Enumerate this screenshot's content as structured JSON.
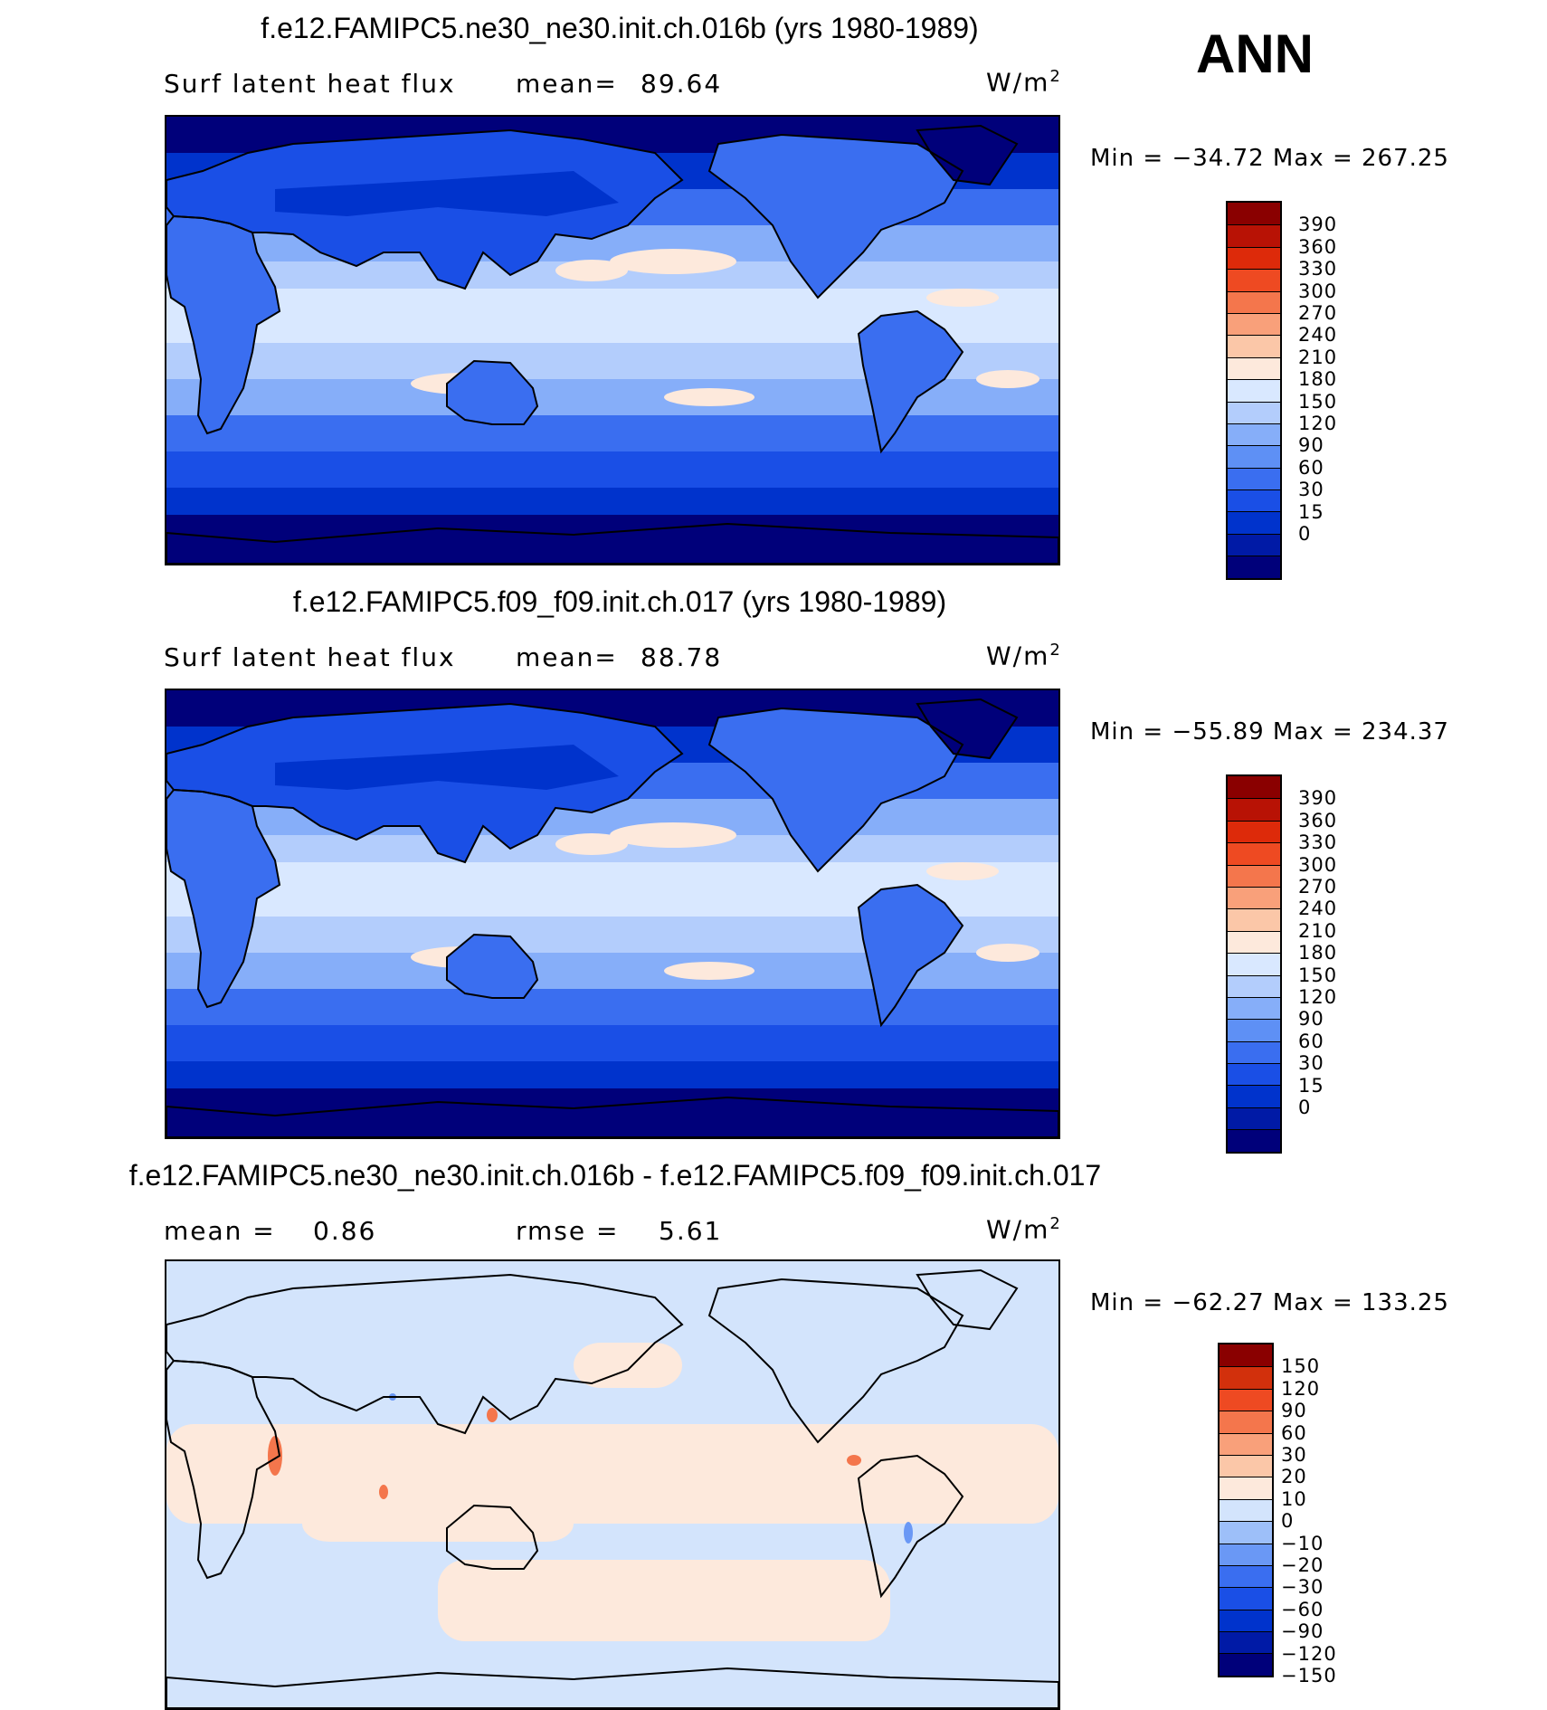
{
  "season": "ANN",
  "colors": {
    "full": [
      "#00007a",
      "#001aa6",
      "#0033cc",
      "#1a4fe6",
      "#3a6ef0",
      "#5e90f5",
      "#86aef9",
      "#b3cdfc",
      "#d9e8ff",
      "#fde9dc",
      "#fbc7a8",
      "#f9a07a",
      "#f4764c",
      "#ee4a22",
      "#dd2a0a",
      "#b81205",
      "#8a0000"
    ],
    "diff": [
      "#00007a",
      "#001aa6",
      "#0033cc",
      "#1a4fe6",
      "#3a6ef0",
      "#6a98f5",
      "#9dbff9",
      "#d3e4fc",
      "#fde9dc",
      "#fbc7a8",
      "#f9a07a",
      "#f4764c",
      "#ee4a22",
      "#d2300c",
      "#8a0000"
    ],
    "coast": "#000000"
  },
  "panels": [
    {
      "title": "f.e12.FAMIPC5.ne30_ne30.init.ch.016b (yrs 1980-1989)",
      "varname": "Surf latent heat flux",
      "stat_label": "mean=",
      "stat_value": "89.64",
      "stat2_label": "",
      "stat2_value": "",
      "units": "W/m",
      "units_exp": "2",
      "minmax": "Min = −34.72 Max = 267.25",
      "colorbar_labels": [
        "390",
        "360",
        "330",
        "300",
        "270",
        "240",
        "210",
        "180",
        "150",
        "120",
        "90",
        "60",
        "30",
        "15",
        "0"
      ]
    },
    {
      "title": "f.e12.FAMIPC5.f09_f09.init.ch.017 (yrs 1980-1989)",
      "varname": "Surf latent heat flux",
      "stat_label": "mean=",
      "stat_value": "88.78",
      "stat2_label": "",
      "stat2_value": "",
      "units": "W/m",
      "units_exp": "2",
      "minmax": "Min = −55.89 Max = 234.37",
      "colorbar_labels": [
        "390",
        "360",
        "330",
        "300",
        "270",
        "240",
        "210",
        "180",
        "150",
        "120",
        "90",
        "60",
        "30",
        "15",
        "0"
      ]
    },
    {
      "title": "f.e12.FAMIPC5.ne30_ne30.init.ch.016b - f.e12.FAMIPC5.f09_f09.init.ch.017",
      "varname": "",
      "stat_label": "mean =",
      "stat_value": "0.86",
      "stat2_label": "rmse =",
      "stat2_value": "5.61",
      "units": "W/m",
      "units_exp": "2",
      "minmax": "Min = −62.27 Max = 133.25",
      "colorbar_labels": [
        "150",
        "120",
        "90",
        "60",
        "30",
        "20",
        "10",
        "0",
        "−10",
        "−20",
        "−30",
        "−60",
        "−90",
        "−120",
        "−150"
      ]
    }
  ]
}
